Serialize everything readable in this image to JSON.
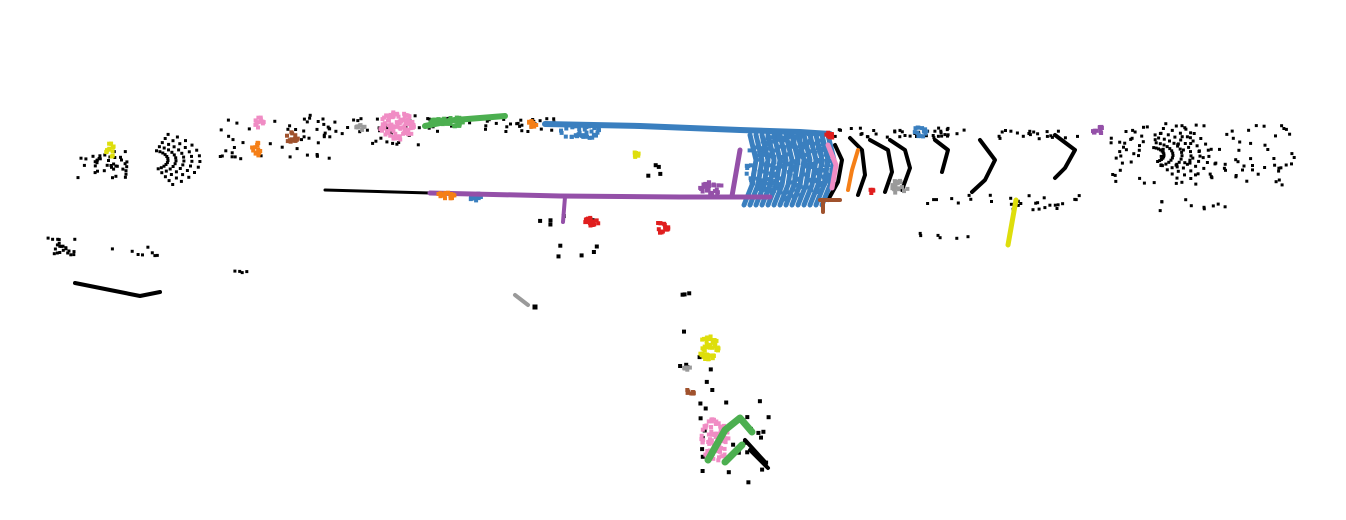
{
  "view": {
    "type": "point-cloud-segmentation",
    "background": "#ffffff",
    "unlabeled_color": "#000000"
  },
  "palette": {
    "blue": "#3a7fbf",
    "purple": "#9450a8",
    "pink": "#f08cc4",
    "green": "#4caf50",
    "orange": "#f57f17",
    "red": "#e01e1e",
    "yellow": "#dede0c",
    "gray": "#9a9a9a",
    "brown": "#a0522d"
  }
}
